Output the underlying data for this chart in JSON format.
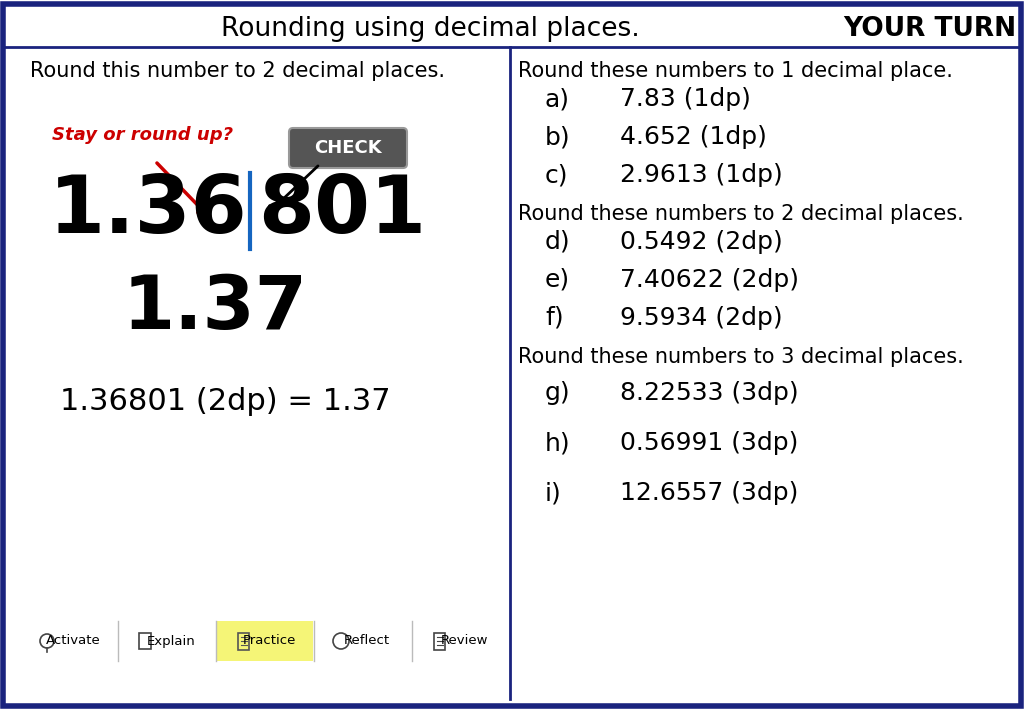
{
  "title": "Rounding using decimal places.",
  "your_turn": "YOUR TURN",
  "left_heading": "Round this number to 2 decimal places.",
  "stay_or_round": "Stay or round up?",
  "number_left": "1.36",
  "number_right": "801",
  "rounded": "1.37",
  "equation": "1.36801 (2dp) = 1.37",
  "check_label": "CHECK",
  "right_heading1": "Round these numbers to 1 decimal place.",
  "right_items_1dp_letter": [
    "a)",
    "b)",
    "c)"
  ],
  "right_items_1dp_value": [
    "7.83 (1dp)",
    "4.652 (1dp)",
    "2.9613 (1dp)"
  ],
  "right_heading2": "Round these numbers to 2 decimal places.",
  "right_items_2dp_letter": [
    "d)",
    "e)",
    "f)"
  ],
  "right_items_2dp_value": [
    "0.5492 (2dp)",
    "7.40622 (2dp)",
    "9.5934 (2dp)"
  ],
  "right_heading3": "Round these numbers to 3 decimal places.",
  "right_items_3dp_letter": [
    "g)",
    "h)",
    "i)"
  ],
  "right_items_3dp_value": [
    "8.22533 (3dp)",
    "0.56991 (3dp)",
    "12.6557 (3dp)"
  ],
  "nav_items": [
    "Activate",
    "Explain",
    "Practice",
    "Reflect",
    "Review"
  ],
  "nav_active": "Practice",
  "bg_color": "#ffffff",
  "border_color": "#1a237e",
  "divider_color": "#1a237e",
  "arrow_color_red": "#cc0000",
  "blue_line_color": "#1565c0",
  "check_bg": "#555555",
  "check_fg": "#ffffff",
  "nav_active_bg": "#f5f577"
}
